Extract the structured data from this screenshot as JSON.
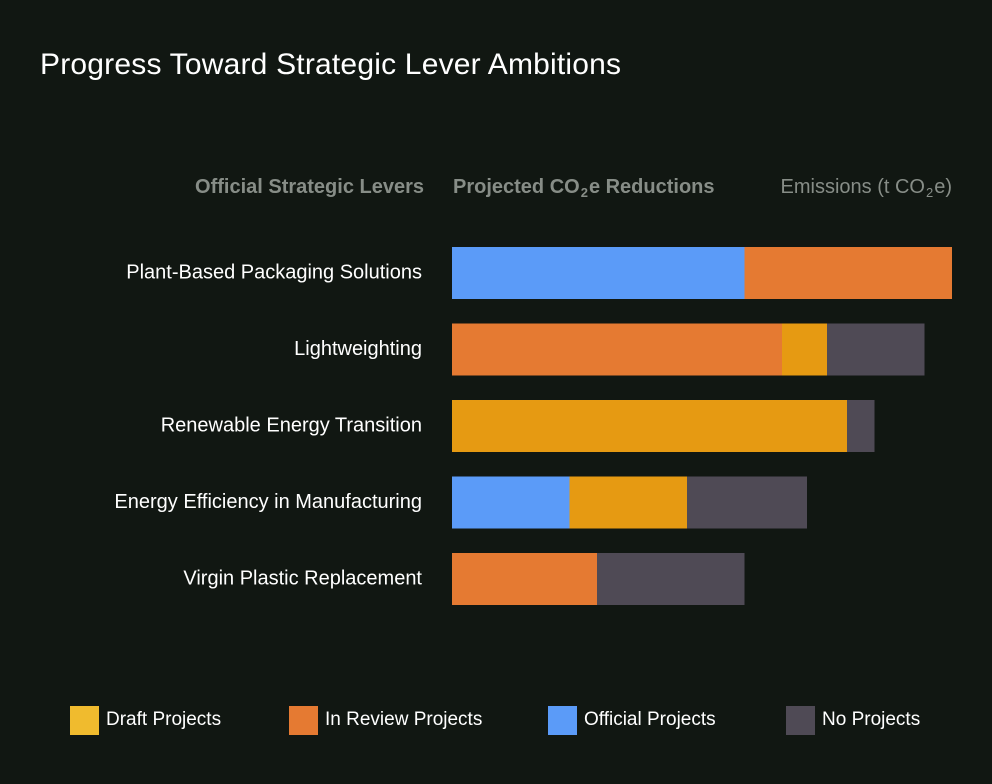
{
  "chart_data": {
    "type": "bar",
    "orientation": "horizontal",
    "stacked": true,
    "title": "Progress Toward Strategic Lever Ambitions",
    "column_headers": {
      "levers": "Official Strategic Levers",
      "reductions_prefix": "Projected CO",
      "reductions_sub": "2",
      "reductions_suffix": "e Reductions",
      "emissions_prefix": "Emissions (t CO",
      "emissions_sub": "2",
      "emissions_suffix": "e)"
    },
    "categories": [
      "Plant-Based Packaging Solutions",
      "Lightweighting",
      "Renewable Energy Transition",
      "Energy Efficiency in Manufacturing",
      "Virgin Plastic Replacement"
    ],
    "series": [
      {
        "name": "Official Projects",
        "color": "#5b9bf8",
        "values": [
          58.5,
          0,
          0,
          23.5,
          0
        ]
      },
      {
        "name": "In Review Projects",
        "color": "#e57a32",
        "values": [
          41.5,
          66,
          0,
          0,
          29
        ]
      },
      {
        "name": "Draft Projects",
        "color": "#e69a12",
        "values": [
          0,
          9,
          79,
          23.5,
          0
        ]
      },
      {
        "name": "No Projects",
        "color": "#4f4a55",
        "values": [
          0,
          19.5,
          5.5,
          24,
          29.5
        ]
      }
    ],
    "xlim": [
      0,
      100
    ],
    "grid": false,
    "legend_position": "bottom",
    "legend": [
      {
        "name": "Draft Projects",
        "color": "#f0bb2e"
      },
      {
        "name": "In Review Projects",
        "color": "#e57a32"
      },
      {
        "name": "Official Projects",
        "color": "#5b9bf8"
      },
      {
        "name": "No Projects",
        "color": "#4f4a55"
      }
    ]
  }
}
